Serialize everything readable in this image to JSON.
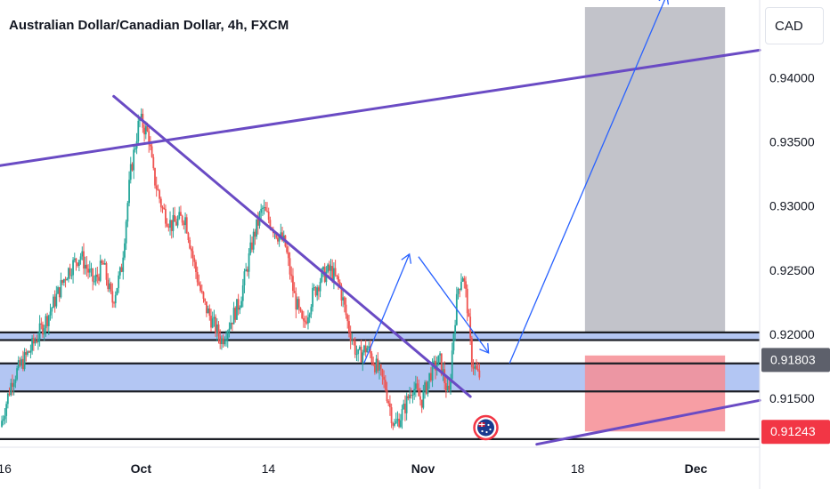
{
  "chart_data": {
    "type": "candlestick",
    "title": "Australian Dollar/Canadian Dollar, 4h, FXCM",
    "currency": "CAD",
    "y_ticks": [
      0.94,
      0.935,
      0.93,
      0.925,
      0.92,
      0.915
    ],
    "y_tick_labels": [
      "0.94000",
      "0.93500",
      "0.93000",
      "0.92500",
      "0.92000",
      "0.91500"
    ],
    "ylim": [
      0.9112,
      0.9455
    ],
    "x_tick_labels": [
      "16",
      "Oct",
      "14",
      "Nov",
      "18",
      "Dec"
    ],
    "x_tick_days": [
      -15,
      0,
      14,
      31,
      48,
      61
    ],
    "x_range_days": [
      -15.5,
      68
    ],
    "last_price_label": "0.91803",
    "last_price": 0.91803,
    "stop_price_label": "0.91243",
    "stop_price": 0.91243,
    "ohlc_waypoints": [
      [
        -15.3,
        0.9128
      ],
      [
        -14,
        0.9165
      ],
      [
        -12,
        0.9188
      ],
      [
        -10,
        0.9215
      ],
      [
        -8,
        0.9248
      ],
      [
        -6.5,
        0.9262
      ],
      [
        -5,
        0.924
      ],
      [
        -4,
        0.9255
      ],
      [
        -3,
        0.9225
      ],
      [
        -2,
        0.925
      ],
      [
        -1,
        0.9325
      ],
      [
        0,
        0.9368
      ],
      [
        1,
        0.9355
      ],
      [
        1.5,
        0.9325
      ],
      [
        2.5,
        0.9298
      ],
      [
        3.5,
        0.9285
      ],
      [
        5,
        0.9292
      ],
      [
        6,
        0.9255
      ],
      [
        7,
        0.9225
      ],
      [
        8,
        0.921
      ],
      [
        9,
        0.9195
      ],
      [
        10,
        0.921
      ],
      [
        11,
        0.9225
      ],
      [
        12.5,
        0.9275
      ],
      [
        13.5,
        0.9298
      ],
      [
        15,
        0.928
      ],
      [
        16,
        0.927
      ],
      [
        17,
        0.923
      ],
      [
        18,
        0.9205
      ],
      [
        19,
        0.923
      ],
      [
        20,
        0.9245
      ],
      [
        21,
        0.925
      ],
      [
        22,
        0.9238
      ],
      [
        23,
        0.9205
      ],
      [
        24,
        0.9182
      ],
      [
        25,
        0.919
      ],
      [
        26,
        0.9175
      ],
      [
        27,
        0.916
      ],
      [
        28,
        0.9128
      ],
      [
        29,
        0.914
      ],
      [
        30,
        0.916
      ],
      [
        31,
        0.9148
      ],
      [
        32,
        0.917
      ],
      [
        33,
        0.918
      ],
      [
        34,
        0.915
      ],
      [
        34.5,
        0.92
      ],
      [
        35,
        0.9235
      ],
      [
        35.5,
        0.9248
      ],
      [
        36,
        0.9225
      ],
      [
        36.5,
        0.918
      ],
      [
        37.2,
        0.9168
      ]
    ],
    "levels": [
      {
        "price": 0.92015,
        "label": "resistance-top"
      },
      {
        "price": 0.91955,
        "label": "resistance-bottom"
      },
      {
        "price": 0.91773,
        "label": "zone-top"
      },
      {
        "price": 0.91555,
        "label": "zone-bottom"
      },
      {
        "price": 0.91183,
        "label": "support"
      }
    ],
    "demand_zone": [
      0.91555,
      0.91773
    ],
    "trendlines": [
      {
        "name": "upper-channel-line",
        "points": [
          [
            -15.5,
            0.93315
          ],
          [
            68,
            0.94215
          ]
        ]
      },
      {
        "name": "descending-trendline",
        "points": [
          [
            -3,
            0.93855
          ],
          [
            36.2,
            0.91515
          ]
        ]
      },
      {
        "name": "lower-channel-line",
        "points": [
          [
            43.5,
            0.91143
          ],
          [
            68,
            0.91485
          ]
        ]
      }
    ],
    "arrows": [
      {
        "name": "arrow-up-1",
        "from": [
          24.5,
          0.91773
        ],
        "to": [
          29.5,
          0.92625
        ]
      },
      {
        "name": "arrow-down",
        "from": [
          30.5,
          0.92605
        ],
        "to": [
          38.2,
          0.91855
        ]
      },
      {
        "name": "arrow-up-2",
        "from": [
          40.5,
          0.91773
        ],
        "to": [
          57.8,
          0.94645
        ]
      }
    ],
    "position_box": {
      "x_range": [
        48.8,
        64.2
      ],
      "target": [
        0.92015,
        0.9455
      ],
      "stop": [
        0.91243,
        0.91835
      ]
    },
    "colors": {
      "up": "#26a69a",
      "down": "#ef5350",
      "trend": "#6a4bc4",
      "arrow": "#2962ff",
      "zone": "#b3c6f3",
      "target": "#c2c3ca",
      "stop": "#f68d94",
      "price_tag": "#5d606b",
      "stop_tag": "#f23645"
    }
  }
}
